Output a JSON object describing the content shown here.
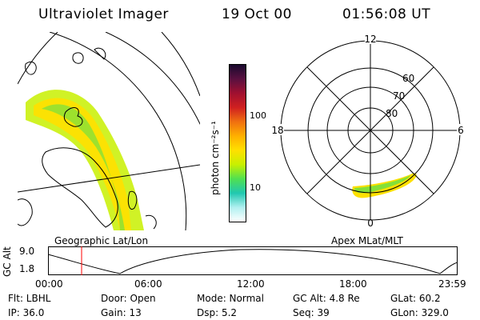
{
  "header": {
    "instrument": "Ultraviolet Imager",
    "date": "19 Oct 00",
    "time": "01:56:08 UT"
  },
  "map_label": "Geographic Lat/Lon",
  "polar": {
    "label": "Apex MLat/MLT",
    "mlt_labels": [
      "12",
      "18",
      "6",
      "0"
    ],
    "mlat_labels": [
      "60",
      "70",
      "80"
    ]
  },
  "colorbar": {
    "unit": "photon cm⁻²s⁻¹",
    "ticks": [
      "100",
      "10"
    ],
    "colors": [
      "#1a0a2e",
      "#5a1040",
      "#a01030",
      "#d02020",
      "#f07010",
      "#ffb000",
      "#ffe000",
      "#c8f000",
      "#50e050",
      "#20c8b0",
      "#b0f0f0",
      "#ffffff"
    ]
  },
  "orbit": {
    "ylabel": "GC Alt",
    "y_ticks": [
      "9.0",
      "1.8"
    ],
    "x_ticks": [
      "00:00",
      "06:00",
      "12:00",
      "18:00",
      "23:59"
    ],
    "current_marker_color": "#ff0000"
  },
  "status": {
    "row1": [
      "Flt: LBHL",
      "Door: Open",
      "Mode: Normal",
      "GC Alt: 4.8 Re",
      "GLat:  60.2"
    ],
    "row2": [
      "IP:  36.0",
      "Gain: 13",
      "Dsp:     5.2",
      "Seq: 39",
      "GLon: 329.0"
    ]
  }
}
